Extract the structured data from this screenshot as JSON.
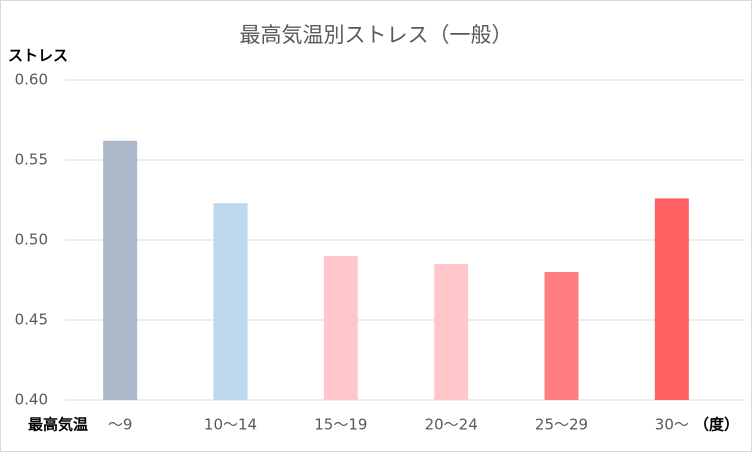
{
  "chart_data": {
    "type": "bar",
    "title": "最高気温別ストレス（一般）",
    "y_label": "ストレス",
    "x_label": "最高気温",
    "x_unit": "（度）",
    "categories": [
      "～9",
      "10～14",
      "15～19",
      "20～24",
      "25～29",
      "30～"
    ],
    "values": [
      0.562,
      0.523,
      0.49,
      0.485,
      0.48,
      0.526
    ],
    "colors": [
      "#adb9ca",
      "#bdd7ee",
      "#ffc7ca",
      "#ffc7ca",
      "#ff7c80",
      "#ff6161"
    ],
    "ylim": [
      0.4,
      0.6
    ],
    "yticks": [
      {
        "value": 0.4,
        "label": "0.40"
      },
      {
        "value": 0.45,
        "label": "0.45"
      },
      {
        "value": 0.5,
        "label": "0.50"
      },
      {
        "value": 0.55,
        "label": "0.55"
      },
      {
        "value": 0.6,
        "label": "0.60"
      }
    ],
    "grid": true
  }
}
